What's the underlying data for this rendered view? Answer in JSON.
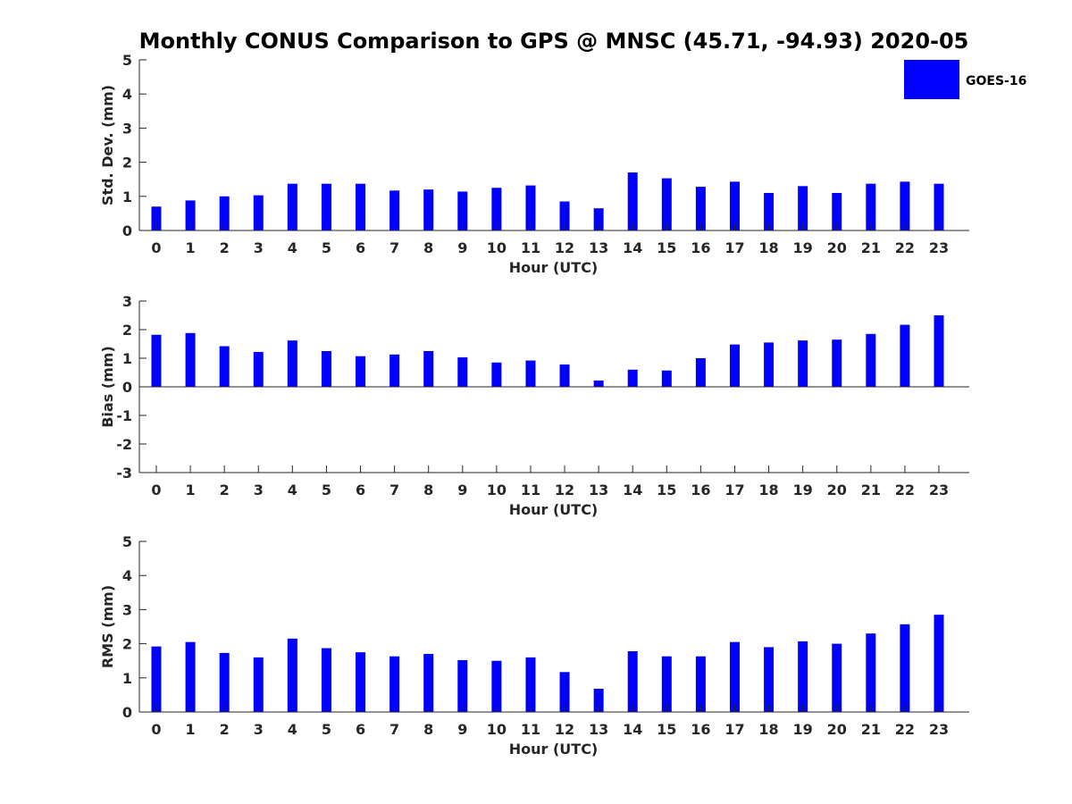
{
  "title": "Monthly CONUS Comparison to GPS @ MNSC (45.71, -94.93) 2020-05",
  "legend": {
    "label": "GOES-16",
    "color": "#0000ff",
    "placement": "top-right"
  },
  "chart_data": [
    {
      "type": "bar",
      "xlabel": "Hour (UTC)",
      "ylabel": "Std. Dev. (mm)",
      "ylim": [
        0,
        5
      ],
      "yticks": [
        0,
        1,
        2,
        3,
        4,
        5
      ],
      "categories": [
        "0",
        "1",
        "2",
        "3",
        "4",
        "5",
        "6",
        "7",
        "8",
        "9",
        "10",
        "11",
        "12",
        "13",
        "14",
        "15",
        "16",
        "17",
        "18",
        "19",
        "20",
        "21",
        "22",
        "23"
      ],
      "series": [
        {
          "name": "GOES-16",
          "color": "#0000ff",
          "values": [
            0.7,
            0.88,
            1.0,
            1.03,
            1.37,
            1.37,
            1.37,
            1.17,
            1.2,
            1.14,
            1.25,
            1.32,
            0.85,
            0.65,
            1.7,
            1.53,
            1.28,
            1.43,
            1.1,
            1.3,
            1.1,
            1.37,
            1.43,
            1.37
          ]
        }
      ]
    },
    {
      "type": "bar",
      "xlabel": "Hour (UTC)",
      "ylabel": "Bias (mm)",
      "ylim": [
        -3,
        3
      ],
      "yticks": [
        -3,
        -2,
        -1,
        0,
        1,
        2,
        3
      ],
      "categories": [
        "0",
        "1",
        "2",
        "3",
        "4",
        "5",
        "6",
        "7",
        "8",
        "9",
        "10",
        "11",
        "12",
        "13",
        "14",
        "15",
        "16",
        "17",
        "18",
        "19",
        "20",
        "21",
        "22",
        "23"
      ],
      "series": [
        {
          "name": "GOES-16",
          "color": "#0000ff",
          "values": [
            1.82,
            1.88,
            1.42,
            1.22,
            1.62,
            1.25,
            1.07,
            1.13,
            1.25,
            1.03,
            0.85,
            0.92,
            0.78,
            0.22,
            0.6,
            0.57,
            1.0,
            1.48,
            1.55,
            1.62,
            1.65,
            1.85,
            2.17,
            2.5
          ]
        }
      ]
    },
    {
      "type": "bar",
      "xlabel": "Hour (UTC)",
      "ylabel": "RMS (mm)",
      "ylim": [
        0,
        5
      ],
      "yticks": [
        0,
        1,
        2,
        3,
        4,
        5
      ],
      "categories": [
        "0",
        "1",
        "2",
        "3",
        "4",
        "5",
        "6",
        "7",
        "8",
        "9",
        "10",
        "11",
        "12",
        "13",
        "14",
        "15",
        "16",
        "17",
        "18",
        "19",
        "20",
        "21",
        "22",
        "23"
      ],
      "series": [
        {
          "name": "GOES-16",
          "color": "#0000ff",
          "values": [
            1.92,
            2.05,
            1.73,
            1.6,
            2.15,
            1.87,
            1.75,
            1.63,
            1.7,
            1.52,
            1.5,
            1.6,
            1.17,
            0.68,
            1.78,
            1.63,
            1.63,
            2.05,
            1.9,
            2.07,
            2.0,
            2.3,
            2.57,
            2.85
          ]
        }
      ]
    }
  ]
}
